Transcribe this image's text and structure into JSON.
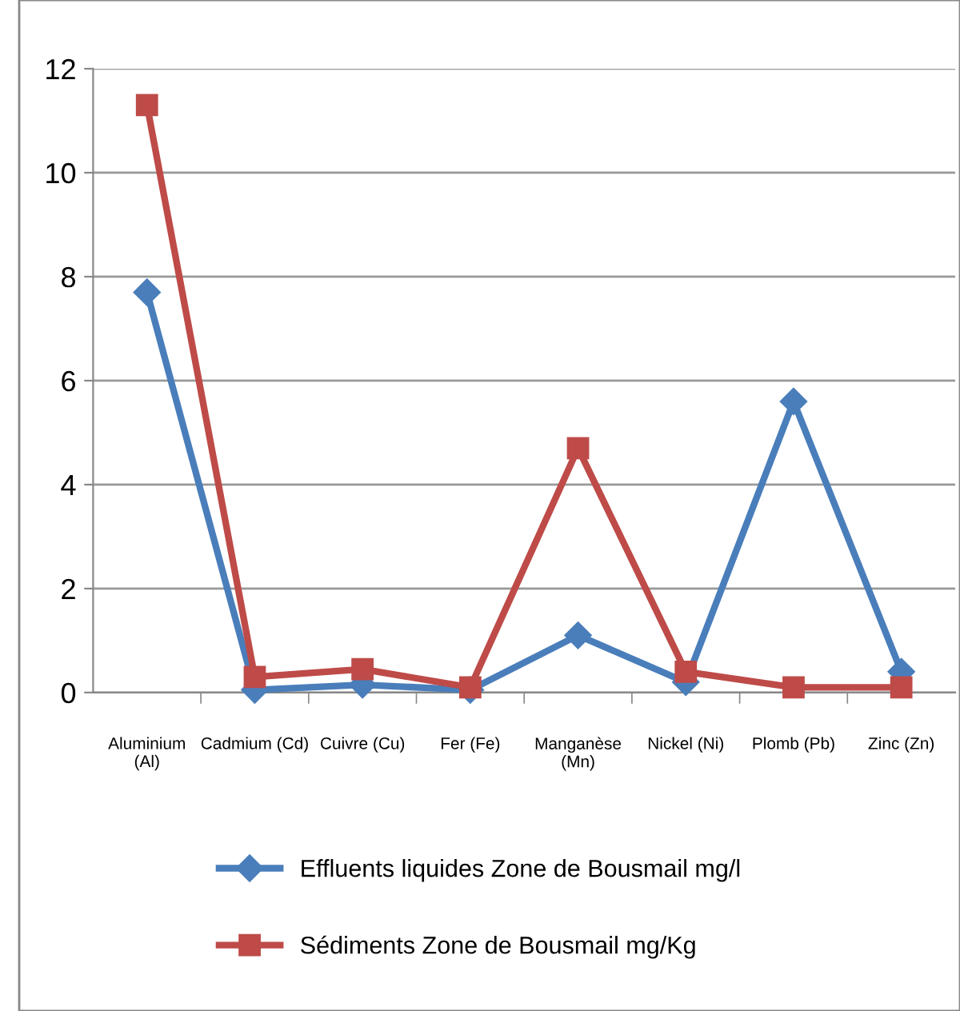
{
  "chart_data": {
    "type": "line",
    "categories": [
      "Aluminium\n(Al)",
      "Cadmium (Cd)",
      "Cuivre (Cu)",
      "Fer (Fe)",
      "Manganèse\n(Mn)",
      "Nickel (Ni)",
      "Plomb (Pb)",
      "Zinc (Zn)"
    ],
    "series": [
      {
        "name": "Effluents liquides Zone de Bousmail mg/l",
        "color": "#4a7ebb",
        "marker": "diamond",
        "values": [
          7.7,
          0.05,
          0.15,
          0.05,
          1.1,
          0.2,
          5.6,
          0.4
        ]
      },
      {
        "name": "Sédiments Zone de Bousmail mg/Kg",
        "color": "#be4b48",
        "marker": "square",
        "values": [
          11.3,
          0.3,
          0.45,
          0.1,
          4.7,
          0.4,
          0.1,
          0.1
        ]
      }
    ],
    "ylim": [
      0,
      12
    ],
    "yticks": [
      0,
      2,
      4,
      6,
      8,
      10,
      12
    ],
    "grid": "y",
    "legend": "bottom",
    "line_style": "solid"
  }
}
